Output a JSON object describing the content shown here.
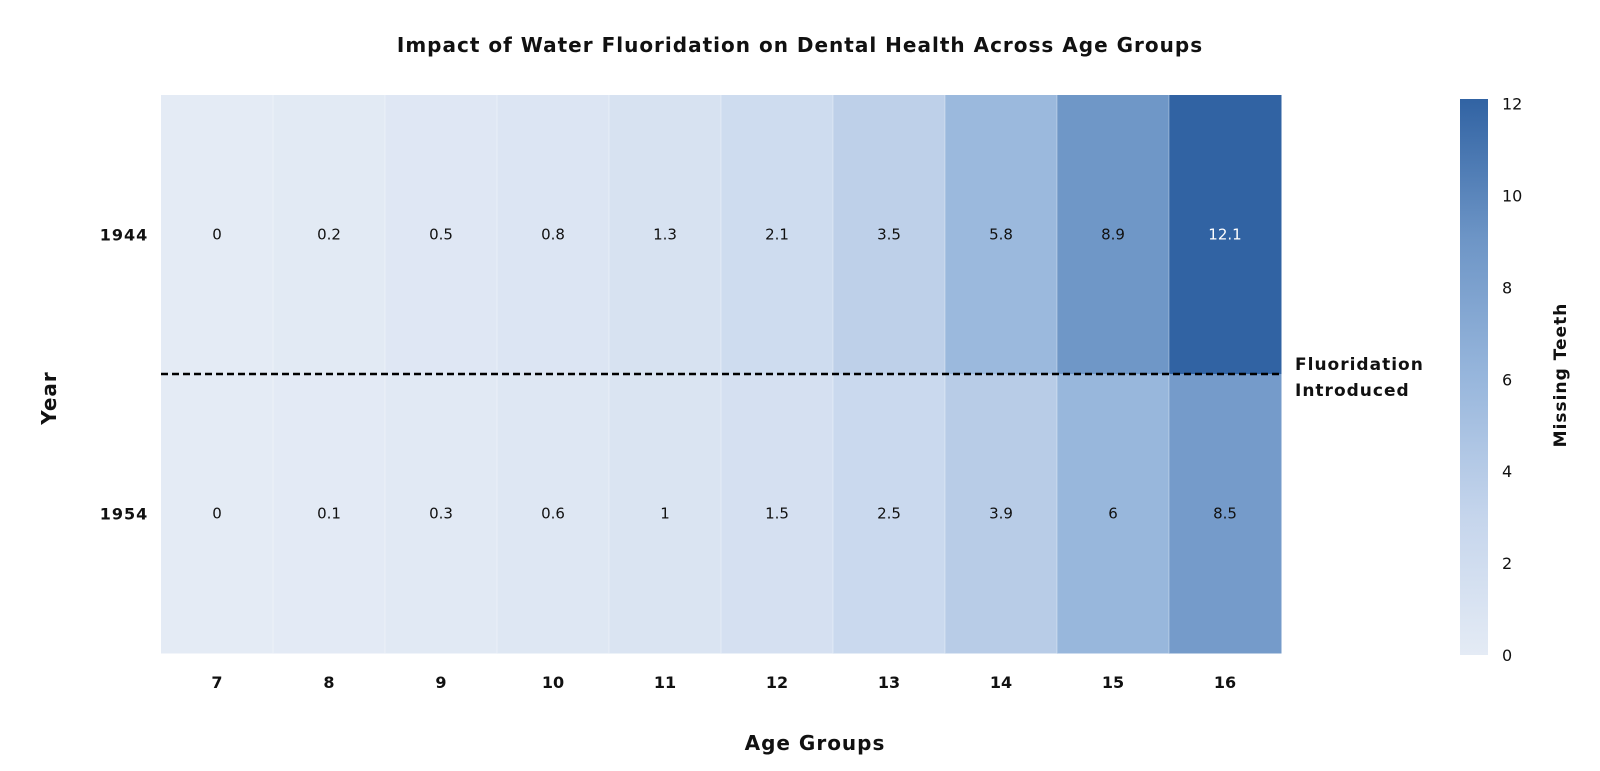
{
  "chart_data": {
    "type": "heatmap",
    "title": "Impact of Water Fluoridation on Dental Health Across Age Groups",
    "xlabel": "Age Groups",
    "ylabel": "Year",
    "x": [
      "7",
      "8",
      "9",
      "10",
      "11",
      "12",
      "13",
      "14",
      "15",
      "16"
    ],
    "y": [
      "1944",
      "1954"
    ],
    "values": [
      [
        0,
        0.2,
        0.5,
        0.8,
        1.3,
        2.1,
        3.5,
        5.8,
        8.9,
        12.1
      ],
      [
        0,
        0.1,
        0.3,
        0.6,
        1,
        1.5,
        2.5,
        3.9,
        6,
        8.5
      ]
    ],
    "value_labels": [
      [
        "0",
        "0.2",
        "0.5",
        "0.8",
        "1.3",
        "2.1",
        "3.5",
        "5.8",
        "8.9",
        "12.1"
      ],
      [
        "0",
        "0.1",
        "0.3",
        "0.6",
        "1",
        "1.5",
        "2.5",
        "3.9",
        "6",
        "8.5"
      ]
    ],
    "colorbar": {
      "label": "Missing Teeth",
      "range": [
        0,
        12.1
      ],
      "ticks": [
        "0",
        "2",
        "4",
        "6",
        "8",
        "10",
        "12"
      ],
      "colors": [
        "#e4ebf5",
        "#c5d5ec",
        "#97b6dc",
        "#6d95c6",
        "#3163a3"
      ]
    },
    "annotation": {
      "text_lines": [
        "Fluoridation",
        "Introduced"
      ],
      "line_style": "dashed",
      "line_color": "#000000"
    },
    "grid": false,
    "legend": "colorbar-right"
  }
}
